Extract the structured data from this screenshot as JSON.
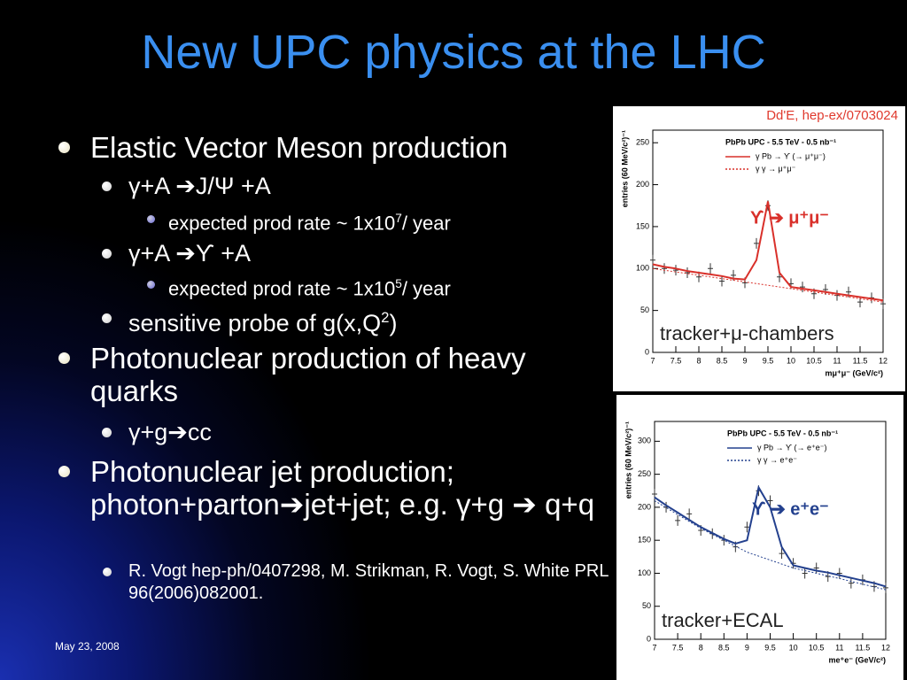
{
  "slide": {
    "title": "New UPC physics at the LHC",
    "date": "May 23, 2008",
    "bullets": [
      {
        "level": 1,
        "segments": [
          {
            "text": "Elastic Vector Meson production"
          }
        ]
      },
      {
        "level": 2,
        "segments": [
          {
            "text": "γ+A ➔J/Ψ +A"
          }
        ]
      },
      {
        "level": 3,
        "segments": [
          {
            "text": "expected prod rate ~ 1x10"
          },
          {
            "text": "7",
            "style": "sup"
          },
          {
            "text": "/ year"
          }
        ]
      },
      {
        "level": 2,
        "segments": [
          {
            "text": "γ+A ➔ϒ +A"
          }
        ]
      },
      {
        "level": 3,
        "segments": [
          {
            "text": "expected prod rate ~ 1x10"
          },
          {
            "text": "5",
            "style": "sup"
          },
          {
            "text": "/ year"
          }
        ]
      },
      {
        "level": 2,
        "segments": [
          {
            "text": " sensitive probe of g(x,Q"
          },
          {
            "text": "2",
            "style": "sup"
          },
          {
            "text": ")"
          }
        ]
      },
      {
        "level": 1,
        "segments": [
          {
            "text": "Photonuclear production of heavy quarks"
          }
        ]
      },
      {
        "level": 2,
        "segments": [
          {
            "text": "γ+g➔cc"
          }
        ]
      },
      {
        "level": 1,
        "segments": [
          {
            "text": "Photonuclear jet production; photon+parton➔jet+jet; e.g. γ+g ➔ q+q"
          }
        ]
      },
      {
        "level": 4,
        "segments": [
          {
            "text": "R. Vogt hep-ph/0407298, M. Strikman, R. Vogt, S. White PRL 96(2006)082001."
          }
        ]
      }
    ]
  },
  "plots": [
    {
      "type": "line",
      "source": "Dd'E, hep-ex/0703024",
      "legend_title": "PbPb UPC - 5.5 TeV - 0.5 nb⁻¹",
      "annotation": "ϒ ➔ μ⁺μ⁻",
      "caption": "tracker+μ-chambers",
      "y_label": "entries (60 MeV/c²)⁻¹",
      "x_label": "mμ⁺μ⁻ (GeV/c²)",
      "xlim": [
        7,
        12
      ],
      "xticks": [
        7,
        7.5,
        8,
        8.5,
        9,
        9.5,
        10,
        10.5,
        11,
        11.5,
        12
      ],
      "ylim": [
        0,
        265
      ],
      "yticks": [
        0,
        50,
        100,
        150,
        200,
        250
      ],
      "series": [
        {
          "style": "points",
          "color": "#333333",
          "x": [
            7,
            7.25,
            7.5,
            7.75,
            8,
            8.25,
            8.5,
            8.75,
            9,
            9.25,
            9.5,
            9.75,
            10,
            10.25,
            10.5,
            10.75,
            11,
            11.25,
            11.5,
            11.75,
            12
          ],
          "values": [
            110,
            100,
            98,
            95,
            90,
            100,
            85,
            92,
            83,
            130,
            175,
            90,
            82,
            78,
            70,
            75,
            68,
            72,
            60,
            65,
            58
          ]
        },
        {
          "name": "γ Pb → ϒ (→ μ⁺μ⁻)",
          "style": "solid",
          "color": "#d9302a",
          "x": [
            7,
            7.25,
            7.5,
            7.75,
            8,
            8.25,
            8.5,
            8.75,
            9,
            9.25,
            9.5,
            9.75,
            10,
            10.25,
            10.5,
            10.75,
            11,
            11.25,
            11.5,
            11.75,
            12
          ],
          "values": [
            105,
            102,
            100,
            97,
            95,
            93,
            91,
            88,
            87,
            110,
            180,
            95,
            78,
            76,
            74,
            72,
            70,
            68,
            66,
            64,
            62
          ]
        },
        {
          "name": "γ γ → μ⁺μ⁻",
          "style": "dashed",
          "color": "#d9302a",
          "x": [
            7,
            8,
            9,
            10,
            11,
            12
          ],
          "values": [
            100,
            92,
            84,
            76,
            68,
            60
          ]
        }
      ]
    },
    {
      "type": "line",
      "legend_title": "PbPb UPC - 5.5 TeV - 0.5 nb⁻¹",
      "annotation": "ϒ ➔ e⁺e⁻",
      "caption": "tracker+ECAL",
      "y_label": "entries (60 MeV/c²)⁻¹",
      "x_label": "me⁺e⁻ (GeV/c²)",
      "xlim": [
        7,
        12
      ],
      "xticks": [
        7,
        7.5,
        8,
        8.5,
        9,
        9.5,
        10,
        10.5,
        11,
        11.5,
        12
      ],
      "ylim": [
        0,
        330
      ],
      "yticks": [
        0,
        50,
        100,
        150,
        200,
        250,
        300
      ],
      "series": [
        {
          "style": "points",
          "color": "#333333",
          "x": [
            7,
            7.25,
            7.5,
            7.75,
            8,
            8.25,
            8.5,
            8.75,
            9,
            9.25,
            9.5,
            9.75,
            10,
            10.25,
            10.5,
            10.75,
            11,
            11.25,
            11.5,
            11.75,
            12
          ],
          "values": [
            220,
            200,
            180,
            190,
            165,
            160,
            150,
            140,
            170,
            225,
            210,
            130,
            115,
            100,
            108,
            95,
            100,
            85,
            90,
            80,
            78
          ]
        },
        {
          "name": "γ Pb → ϒ (→ e⁺e⁻)",
          "style": "solid",
          "color": "#23408e",
          "x": [
            7,
            7.25,
            7.5,
            7.75,
            8,
            8.25,
            8.5,
            8.75,
            9,
            9.25,
            9.5,
            9.75,
            10,
            10.25,
            10.5,
            10.75,
            11,
            11.25,
            11.5,
            11.75,
            12
          ],
          "values": [
            215,
            203,
            192,
            181,
            170,
            161,
            152,
            145,
            150,
            230,
            200,
            140,
            112,
            108,
            104,
            101,
            97,
            93,
            89,
            85,
            80
          ]
        },
        {
          "name": "γ γ → e⁺e⁻",
          "style": "dashed",
          "color": "#23408e",
          "x": [
            7,
            8,
            9,
            10,
            11,
            12
          ],
          "values": [
            210,
            168,
            132,
            108,
            92,
            75
          ]
        }
      ]
    }
  ]
}
